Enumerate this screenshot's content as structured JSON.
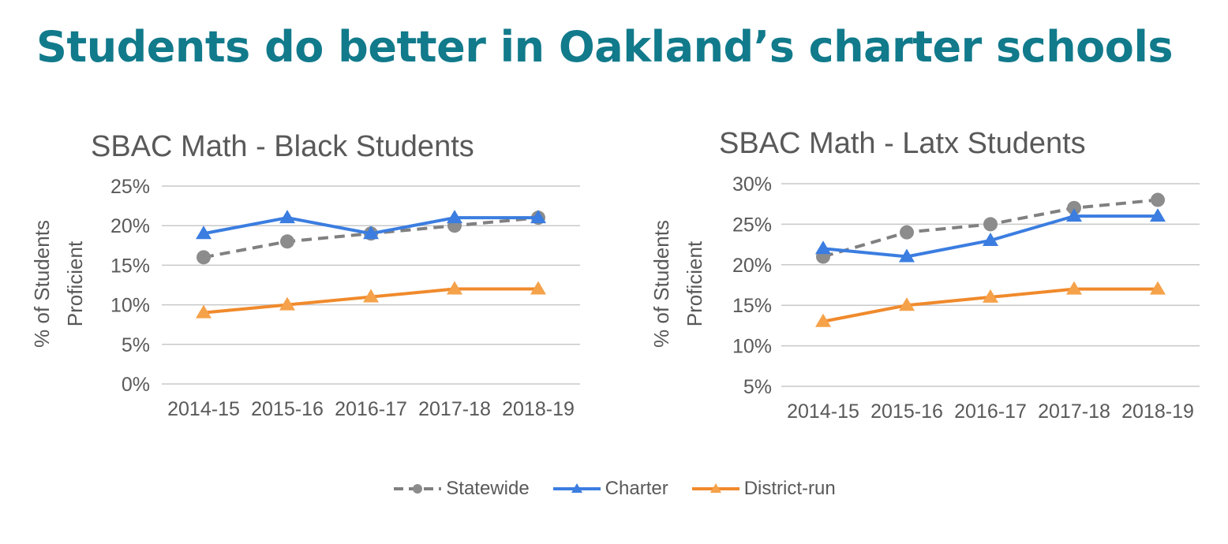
{
  "page": {
    "title": "Students do better in Oakland’s charter schools"
  },
  "chart_data": [
    {
      "type": "line",
      "title": "SBAC Math  - Black Students",
      "ylabel": "% of Students Proficient",
      "ylabel_lines": [
        "% of Students",
        "Proficient"
      ],
      "categories": [
        "2014-15",
        "2015-16",
        "2016-17",
        "2017-18",
        "2018-19"
      ],
      "ylim": [
        0,
        25
      ],
      "yticks": [
        0,
        5,
        10,
        15,
        20,
        25
      ],
      "ytick_labels": [
        "0%",
        "5%",
        "10%",
        "15%",
        "20%",
        "25%"
      ],
      "grid": true,
      "series": [
        {
          "name": "Statewide",
          "values": [
            16,
            18,
            19,
            20,
            21
          ]
        },
        {
          "name": "Charter",
          "values": [
            19,
            21,
            19,
            21,
            21
          ]
        },
        {
          "name": "District-run",
          "values": [
            9,
            10,
            11,
            12,
            12
          ]
        }
      ]
    },
    {
      "type": "line",
      "title": "SBAC Math  - Latx Students",
      "ylabel": "% of Students Proficient",
      "ylabel_lines": [
        "% of Students",
        "Proficient"
      ],
      "categories": [
        "2014-15",
        "2015-16",
        "2016-17",
        "2017-18",
        "2018-19"
      ],
      "ylim": [
        5,
        30
      ],
      "yticks": [
        5,
        10,
        15,
        20,
        25,
        30
      ],
      "ytick_labels": [
        "5%",
        "10%",
        "15%",
        "20%",
        "25%",
        "30%"
      ],
      "grid": true,
      "series": [
        {
          "name": "Statewide",
          "values": [
            21,
            24,
            25,
            27,
            28
          ]
        },
        {
          "name": "Charter",
          "values": [
            22,
            21,
            23,
            26,
            26
          ]
        },
        {
          "name": "District-run",
          "values": [
            13,
            15,
            16,
            17,
            17
          ]
        }
      ]
    }
  ],
  "legend": {
    "placement": "bottom",
    "items": [
      {
        "label": "Statewide",
        "color": "#808080",
        "style": "dashed",
        "marker": "circle"
      },
      {
        "label": "Charter",
        "color": "#3b7de0",
        "style": "solid",
        "marker": "triangle"
      },
      {
        "label": "District-run",
        "color": "#f08a2c",
        "style": "solid",
        "marker": "triangle"
      }
    ]
  },
  "series_styles": {
    "Statewide": {
      "color": "#808080",
      "dashed": true,
      "marker": "circle",
      "marker_color": "#8c8c8c"
    },
    "Charter": {
      "color": "#3b7de0",
      "dashed": false,
      "marker": "triangle",
      "marker_color": "#3b7de0"
    },
    "District-run": {
      "color": "#f08a2c",
      "dashed": false,
      "marker": "triangle",
      "marker_color": "#f5a24a"
    }
  }
}
